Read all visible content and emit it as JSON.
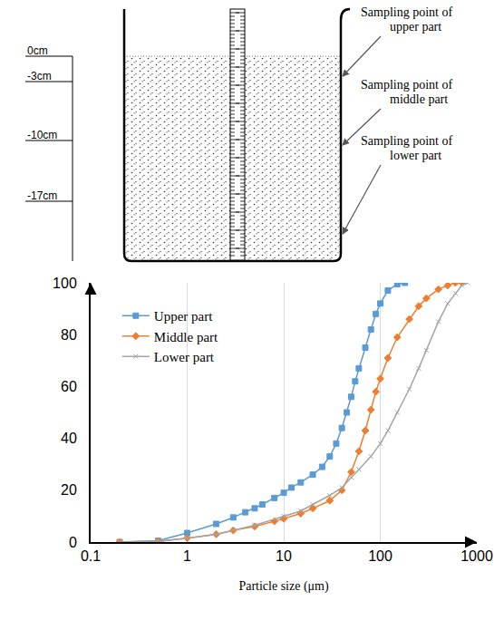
{
  "diagram": {
    "depth_labels": [
      "0cm",
      "-3cm",
      "-10cm",
      "-17cm"
    ],
    "sampling_labels": [
      "Sampling point of upper part",
      "Sampling point of middle part",
      "Sampling point of lower part"
    ]
  },
  "chart_data": {
    "type": "line",
    "xlabel": "Particle size (μm)",
    "log": "x",
    "grid": true,
    "legend": "upper left",
    "xlim": [
      0.1,
      1000
    ],
    "xticks": [
      0.1,
      1,
      10,
      100,
      1000
    ],
    "ylim": [
      0,
      100
    ],
    "yticks": [
      0,
      20,
      40,
      60,
      80,
      100
    ],
    "series": [
      {
        "name": "Upper part",
        "color": "#5b9bd5",
        "marker": "square",
        "x": [
          0.2,
          0.5,
          1,
          2,
          3,
          4,
          5,
          6,
          8,
          10,
          12,
          15,
          20,
          25,
          30,
          35,
          40,
          45,
          50,
          55,
          60,
          70,
          80,
          90,
          100,
          120,
          150,
          180
        ],
        "values": [
          0,
          0.5,
          3.5,
          7,
          9.5,
          11.5,
          13,
          14.5,
          17,
          19,
          21,
          23,
          26,
          29,
          33,
          38,
          44,
          50,
          56,
          62,
          67,
          75,
          82,
          88,
          92,
          97,
          99.5,
          100
        ]
      },
      {
        "name": "Middle part",
        "color": "#ed7d31",
        "marker": "diamond",
        "x": [
          0.2,
          0.5,
          1,
          2,
          3,
          5,
          8,
          10,
          15,
          20,
          30,
          40,
          50,
          60,
          70,
          80,
          90,
          100,
          120,
          150,
          200,
          250,
          300,
          400,
          500,
          600,
          700
        ],
        "values": [
          0,
          0.3,
          1.5,
          3,
          4.5,
          6,
          8,
          9,
          11,
          13,
          16,
          20,
          27,
          35,
          43,
          51,
          58,
          63,
          71,
          79,
          86,
          91,
          94,
          97.5,
          99,
          100,
          100
        ]
      },
      {
        "name": "Lower part",
        "color": "#a5a5a5",
        "marker": "x",
        "x": [
          0.2,
          0.5,
          1,
          2,
          5,
          10,
          15,
          20,
          30,
          40,
          50,
          60,
          80,
          100,
          120,
          150,
          200,
          250,
          300,
          400,
          500,
          600,
          700,
          800
        ],
        "values": [
          0,
          0.3,
          1.5,
          3,
          6.5,
          10,
          12,
          14.5,
          18,
          21,
          25,
          28,
          33,
          38,
          43,
          50,
          59,
          67,
          74,
          85,
          92,
          96,
          99,
          100
        ]
      }
    ]
  }
}
